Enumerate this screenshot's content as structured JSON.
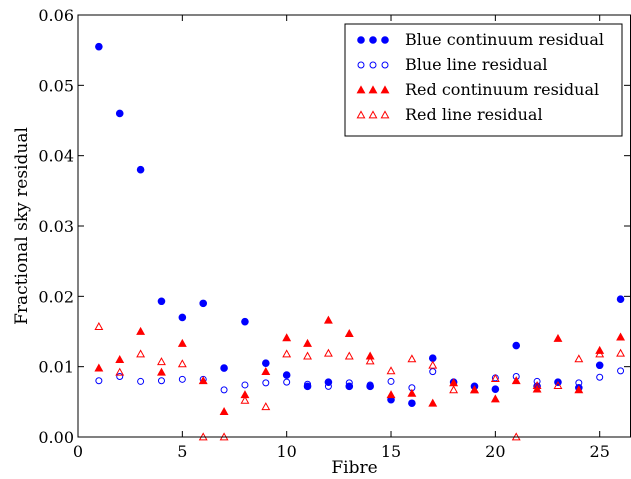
{
  "chart_data": {
    "type": "scatter",
    "title": "",
    "xlabel": "Fibre",
    "ylabel": "Fractional sky residual",
    "xlim": [
      0,
      26.5
    ],
    "ylim": [
      0,
      0.06
    ],
    "xticks": [
      0,
      5,
      10,
      15,
      20,
      25
    ],
    "xtick_labels": [
      "0",
      "5",
      "10",
      "15",
      "20",
      "25"
    ],
    "yticks": [
      0,
      0.01,
      0.02,
      0.03,
      0.04,
      0.05,
      0.06
    ],
    "ytick_labels": [
      "0.00",
      "0.01",
      "0.02",
      "0.03",
      "0.04",
      "0.05",
      "0.06"
    ],
    "grid": false,
    "legend_position": "top-right",
    "x": [
      1,
      2,
      3,
      4,
      5,
      6,
      7,
      8,
      9,
      10,
      11,
      12,
      13,
      14,
      15,
      16,
      17,
      18,
      19,
      20,
      21,
      22,
      23,
      24,
      25,
      26
    ],
    "series": [
      {
        "name": "Blue continuum residual",
        "color": "#0000ff",
        "marker": "filled-circle",
        "values": [
          0.0555,
          0.046,
          0.038,
          0.0193,
          0.017,
          0.019,
          0.0098,
          0.0164,
          0.0105,
          0.0088,
          0.0072,
          0.0078,
          0.0072,
          0.0072,
          0.0053,
          0.0048,
          0.0112,
          0.0078,
          0.0072,
          0.0068,
          0.013,
          0.0072,
          0.0078,
          0.007,
          0.0102,
          0.0196
        ]
      },
      {
        "name": "Blue line residual",
        "color": "#0000ff",
        "marker": "open-circle",
        "values": [
          0.008,
          0.0086,
          0.0079,
          0.008,
          0.0082,
          0.0082,
          0.0067,
          0.0074,
          0.0077,
          0.0078,
          0.0075,
          0.0072,
          0.0077,
          0.0074,
          0.0079,
          0.007,
          0.0093,
          0.0078,
          0.0072,
          0.0084,
          0.0086,
          0.0079,
          0.0078,
          0.0077,
          0.0085,
          0.0094
        ]
      },
      {
        "name": "Red continuum residual",
        "color": "#ff0000",
        "marker": "filled-triangle",
        "values": [
          0.0098,
          0.011,
          0.015,
          0.0092,
          0.0133,
          0.008,
          0.0036,
          0.006,
          0.0093,
          0.0141,
          0.0133,
          0.0166,
          0.0147,
          0.0115,
          0.006,
          0.0062,
          0.0048,
          0.0077,
          0.0067,
          0.0054,
          0.008,
          0.0068,
          0.014,
          0.0067,
          0.0123,
          0.0142
        ]
      },
      {
        "name": "Red line residual",
        "color": "#ff0000",
        "marker": "open-triangle",
        "values": [
          0.0157,
          0.0092,
          0.0118,
          0.0107,
          0.0104,
          0.0,
          0.0,
          0.0052,
          0.0043,
          0.0118,
          0.0115,
          0.0119,
          0.0115,
          0.0108,
          0.0094,
          0.0111,
          0.0102,
          0.0067,
          0.0067,
          0.0083,
          0.0,
          0.0073,
          0.0073,
          0.0111,
          0.0118,
          0.0119
        ]
      }
    ]
  }
}
